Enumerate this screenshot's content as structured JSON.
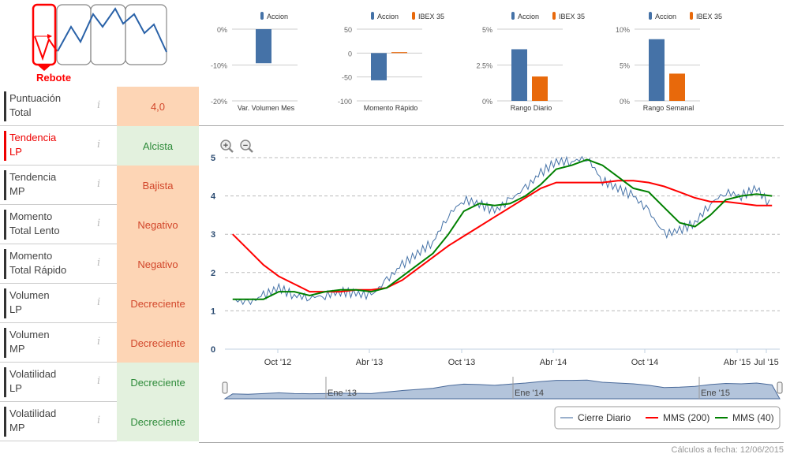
{
  "pattern": {
    "label": "Rebote"
  },
  "scores": [
    {
      "label1": "Puntuación",
      "label2": "Total",
      "value": "4,0",
      "tone": "orange",
      "highlight": false
    },
    {
      "label1": "Tendencia",
      "label2": "LP",
      "value": "Alcista",
      "tone": "green",
      "highlight": true
    },
    {
      "label1": "Tendencia",
      "label2": "MP",
      "value": "Bajista",
      "tone": "orange",
      "highlight": false
    },
    {
      "label1": "Momento",
      "label2": "Total Lento",
      "value": "Negativo",
      "tone": "orange",
      "highlight": false
    },
    {
      "label1": "Momento",
      "label2": "Total Rápido",
      "value": "Negativo",
      "tone": "orange",
      "highlight": false
    },
    {
      "label1": "Volumen",
      "label2": "LP",
      "value": "Decreciente",
      "tone": "orange",
      "highlight": false
    },
    {
      "label1": "Volumen",
      "label2": "MP",
      "value": "Decreciente",
      "tone": "orange",
      "highlight": false
    },
    {
      "label1": "Volatilidad",
      "label2": "LP",
      "value": "Decreciente",
      "tone": "green",
      "highlight": false
    },
    {
      "label1": "Volatilidad",
      "label2": "MP",
      "value": "Decreciente",
      "tone": "green",
      "highlight": false
    }
  ],
  "info_icon": "i",
  "colors": {
    "accion": "#4572a7",
    "ibex": "#e8690b",
    "close": "#4572a7",
    "mms200": "#ff0000",
    "mms40": "#008000",
    "navigator": "#b3c4db"
  },
  "chart_data": [
    {
      "type": "bar",
      "title": "Var. Volumen Mes",
      "legend": [
        "Accion"
      ],
      "ticks": [
        "0%",
        "-10%",
        "-20%"
      ],
      "ylim": [
        -20,
        0
      ],
      "values": [
        -9.5
      ]
    },
    {
      "type": "bar",
      "title": "Momento Rápido",
      "legend": [
        "Accion",
        "IBEX 35"
      ],
      "ticks": [
        "50",
        "0",
        "-50",
        "-100"
      ],
      "ylim": [
        -100,
        50
      ],
      "values": [
        -57,
        2
      ]
    },
    {
      "type": "bar",
      "title": "Rango Diario",
      "legend": [
        "Accion",
        "IBEX 35"
      ],
      "ticks": [
        "5%",
        "2.5%",
        "0%"
      ],
      "ylim": [
        0,
        5
      ],
      "values": [
        3.6,
        1.7
      ]
    },
    {
      "type": "bar",
      "title": "Rango Semanal",
      "legend": [
        "Accion",
        "IBEX 35"
      ],
      "ticks": [
        "10%",
        "5%",
        "0%"
      ],
      "ylim": [
        0,
        10
      ],
      "values": [
        8.6,
        3.8
      ]
    },
    {
      "type": "line",
      "ylim": [
        0,
        5
      ],
      "yticks": [
        "0",
        "1",
        "2",
        "3",
        "4",
        "5"
      ],
      "xticks": [
        "Oct '12",
        "Abr '13",
        "Oct '13",
        "Abr '14",
        "Oct '14",
        "Abr '15",
        "Jul '15"
      ],
      "navigator_labels": [
        "Ene '13",
        "Ene '14",
        "Ene '15"
      ],
      "x": [
        "2012-07",
        "2012-08",
        "2012-09",
        "2012-10",
        "2012-11",
        "2012-12",
        "2013-01",
        "2013-02",
        "2013-03",
        "2013-04",
        "2013-05",
        "2013-06",
        "2013-07",
        "2013-08",
        "2013-09",
        "2013-10",
        "2013-11",
        "2013-12",
        "2014-01",
        "2014-02",
        "2014-03",
        "2014-04",
        "2014-05",
        "2014-06",
        "2014-07",
        "2014-08",
        "2014-09",
        "2014-10",
        "2014-11",
        "2014-12",
        "2015-01",
        "2015-02",
        "2015-03",
        "2015-04",
        "2015-05",
        "2015-06"
      ],
      "series": [
        {
          "name": "Cierre Diario",
          "values": [
            1.3,
            1.2,
            1.4,
            1.6,
            1.4,
            1.35,
            1.4,
            1.5,
            1.45,
            1.4,
            1.8,
            2.2,
            2.5,
            2.8,
            3.5,
            3.9,
            3.8,
            3.6,
            3.9,
            4.2,
            4.6,
            4.9,
            4.9,
            5.0,
            4.4,
            4.2,
            4.0,
            3.6,
            3.0,
            3.1,
            3.3,
            3.8,
            4.1,
            4.0,
            4.2,
            3.7
          ]
        },
        {
          "name": "MMS (200)",
          "values": [
            3.0,
            2.6,
            2.2,
            1.9,
            1.7,
            1.5,
            1.5,
            1.5,
            1.55,
            1.55,
            1.6,
            1.8,
            2.1,
            2.4,
            2.7,
            2.95,
            3.2,
            3.45,
            3.7,
            3.95,
            4.2,
            4.35,
            4.35,
            4.35,
            4.35,
            4.4,
            4.4,
            4.35,
            4.25,
            4.1,
            3.95,
            3.85,
            3.85,
            3.8,
            3.75,
            3.75
          ]
        },
        {
          "name": "MMS (40)",
          "values": [
            1.3,
            1.3,
            1.3,
            1.5,
            1.5,
            1.4,
            1.5,
            1.55,
            1.55,
            1.5,
            1.6,
            1.9,
            2.2,
            2.5,
            3.0,
            3.6,
            3.8,
            3.75,
            3.8,
            4.0,
            4.3,
            4.7,
            4.8,
            4.95,
            4.8,
            4.5,
            4.2,
            4.1,
            3.7,
            3.3,
            3.2,
            3.5,
            3.9,
            4.0,
            4.05,
            4.0
          ]
        }
      ]
    }
  ],
  "footer": {
    "date": "Cálculos a fecha: 12/06/2015"
  }
}
